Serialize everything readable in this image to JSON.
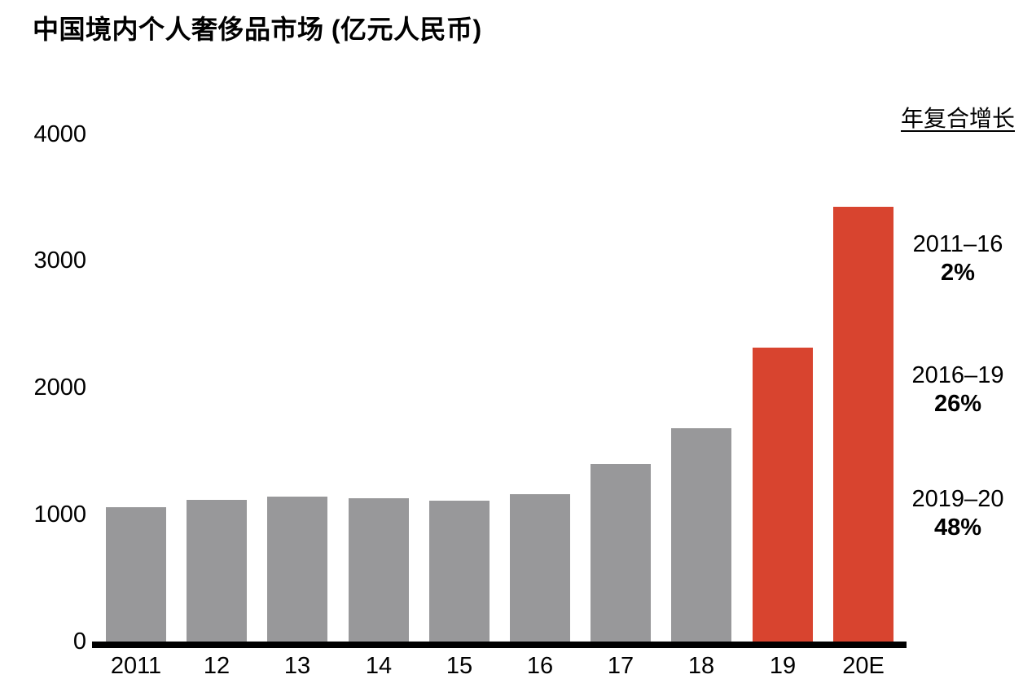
{
  "title": "中国境内个人奢侈品市场 (亿元人民币)",
  "chart_data": {
    "type": "bar",
    "title": "中国境内个人奢侈品市场 (亿元人民币)",
    "unit": "亿元人民币",
    "categories": [
      "2011",
      "12",
      "13",
      "14",
      "15",
      "16",
      "17",
      "18",
      "19",
      "20E"
    ],
    "values": [
      1060,
      1120,
      1140,
      1130,
      1110,
      1160,
      1400,
      1680,
      2320,
      3430
    ],
    "ylim": [
      0,
      4000
    ],
    "y_ticks": [
      4000,
      3000,
      2000,
      1000,
      0
    ],
    "grid": false,
    "legend": "none",
    "bar_color_default": "#98989a",
    "bar_color_highlight": "#d8442f",
    "highlighted_categories": [
      "19",
      "20E"
    ],
    "axis_color": "#000000",
    "annotations": {
      "header": "年复合增长",
      "entries": [
        {
          "period": "2011–16",
          "cagr": "2%"
        },
        {
          "period": "2016–19",
          "cagr": "26%"
        },
        {
          "period": "2019–20",
          "cagr": "48%"
        }
      ]
    }
  }
}
